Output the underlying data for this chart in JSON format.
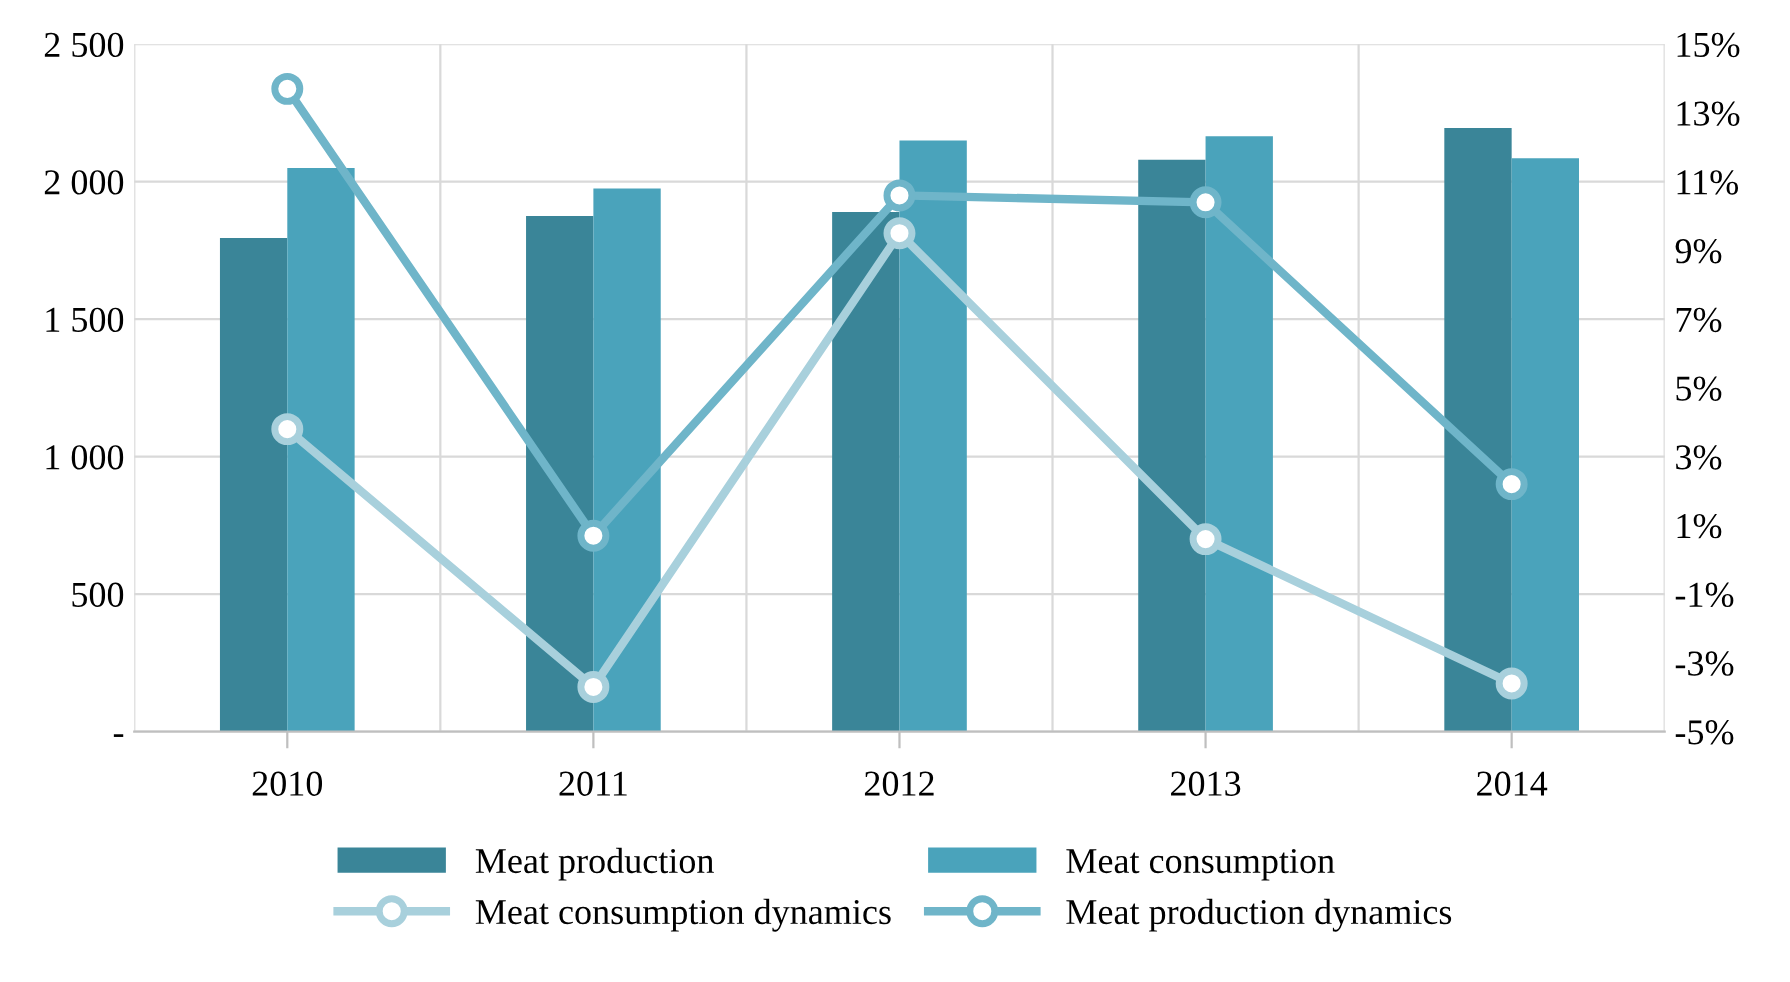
{
  "chart_data": {
    "type": "bar",
    "categories": [
      "2010",
      "2011",
      "2012",
      "2013",
      "2014"
    ],
    "series": [
      {
        "name": "Meat production",
        "color": "#3a8598",
        "values": [
          1795,
          1875,
          1890,
          2080,
          2195
        ]
      },
      {
        "name": "Meat consumption",
        "color": "#4aa3bb",
        "values": [
          2050,
          1975,
          2150,
          2165,
          2085
        ]
      },
      {
        "name": "Meat consumption dynamics",
        "type": "line",
        "axis": "y2",
        "color": "#a8d0dc",
        "values": [
          3.8,
          -3.7,
          9.5,
          0.6,
          -3.6
        ]
      },
      {
        "name": "Meat production dynamics",
        "type": "line",
        "axis": "y2",
        "color": "#6fb5c9",
        "values": [
          13.7,
          0.7,
          10.6,
          10.4,
          2.2
        ]
      }
    ],
    "ylim": [
      0,
      2500
    ],
    "yticks": [
      {
        "value": 0,
        "label": "-"
      },
      {
        "value": 500,
        "label": "500"
      },
      {
        "value": 1000,
        "label": "1 000"
      },
      {
        "value": 1500,
        "label": "1 500"
      },
      {
        "value": 2000,
        "label": "2 000"
      },
      {
        "value": 2500,
        "label": "2 500"
      }
    ],
    "y2lim": [
      -5,
      15
    ],
    "y2ticks": [
      {
        "value": -5,
        "label": "-5%"
      },
      {
        "value": -3,
        "label": "-3%"
      },
      {
        "value": -1,
        "label": "-1%"
      },
      {
        "value": 1,
        "label": "1%"
      },
      {
        "value": 3,
        "label": "3%"
      },
      {
        "value": 5,
        "label": "5%"
      },
      {
        "value": 7,
        "label": "7%"
      },
      {
        "value": 9,
        "label": "9%"
      },
      {
        "value": 11,
        "label": "11%"
      },
      {
        "value": 13,
        "label": "13%"
      },
      {
        "value": 15,
        "label": "15%"
      }
    ],
    "grid": true,
    "legend": "bottom",
    "marker": "circle",
    "line_style": "solid"
  }
}
